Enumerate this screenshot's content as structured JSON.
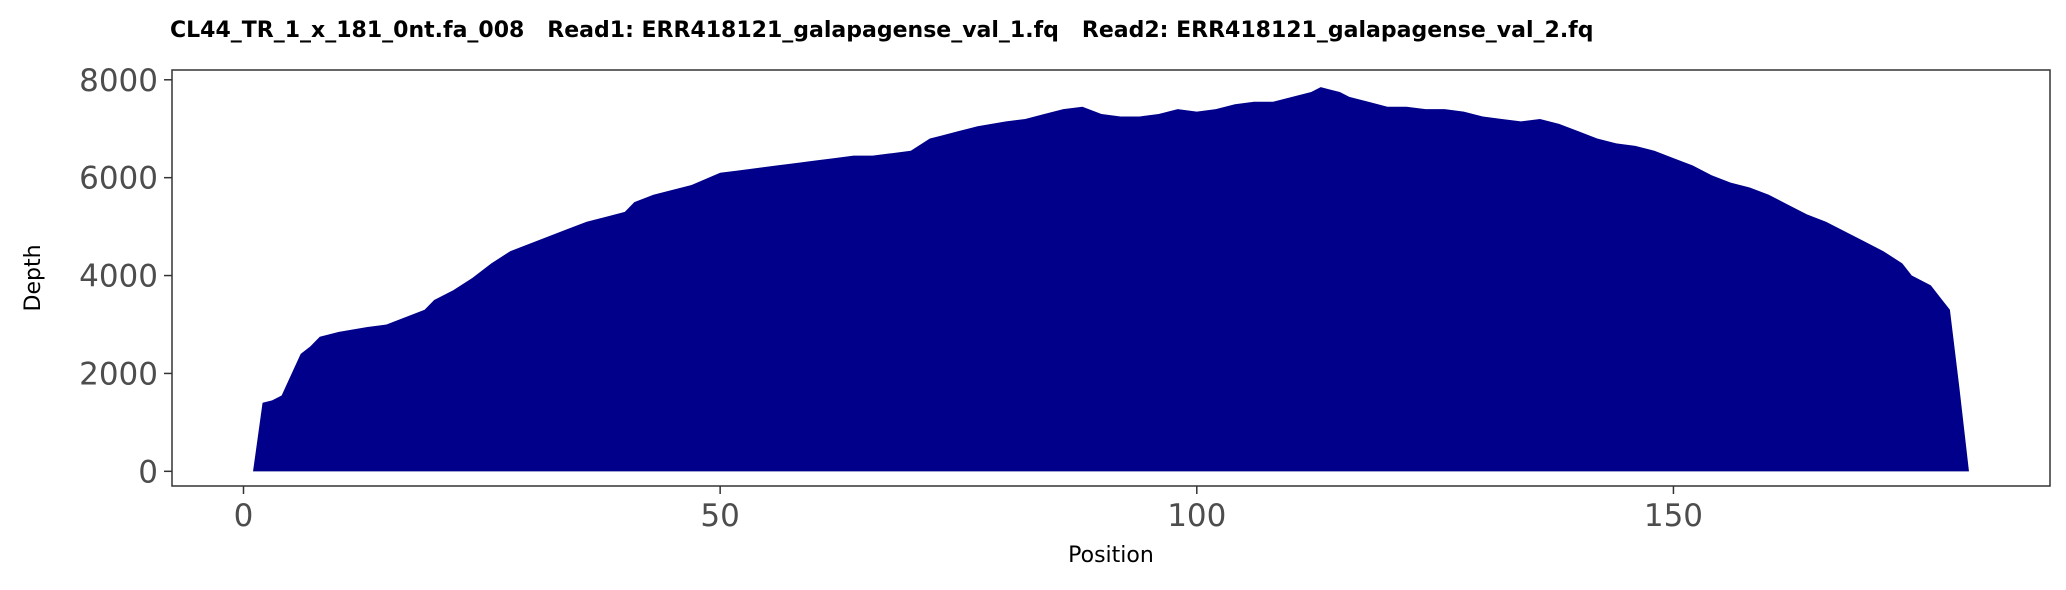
{
  "chart_data": {
    "type": "area",
    "title": "CL44_TR_1_x_181_0nt.fa_008   Read1: ERR418121_galapagense_val_1.fq   Read2: ERR418121_galapagense_val_2.fq",
    "xlabel": "Position",
    "ylabel": "Depth",
    "xlim": [
      -7.5,
      189.5
    ],
    "ylim": [
      -300,
      8200
    ],
    "x_ticks": [
      0,
      50,
      100,
      150
    ],
    "y_ticks": [
      0,
      2000,
      4000,
      6000,
      8000
    ],
    "grid": false,
    "legend": "none",
    "fill_color": "#00008b",
    "x": [
      1,
      2,
      3,
      4,
      6,
      7,
      8,
      10,
      13,
      15,
      17,
      19,
      20,
      22,
      24,
      26,
      28,
      30,
      32,
      34,
      36,
      38,
      40,
      41,
      43,
      45,
      47,
      50,
      52,
      54,
      56,
      58,
      60,
      62,
      64,
      66,
      68,
      70,
      72,
      73,
      75,
      77,
      80,
      82,
      84,
      86,
      88,
      90,
      92,
      94,
      96,
      98,
      100,
      102,
      104,
      106,
      108,
      110,
      112,
      113,
      114,
      115,
      116,
      118,
      120,
      122,
      124,
      126,
      128,
      130,
      132,
      134,
      136,
      138,
      140,
      142,
      144,
      146,
      148,
      150,
      152,
      154,
      156,
      158,
      160,
      162,
      164,
      166,
      168,
      170,
      172,
      174,
      175,
      177,
      178,
      179,
      180,
      181
    ],
    "values": [
      0,
      1400,
      1450,
      1550,
      2400,
      2550,
      2750,
      2850,
      2950,
      3000,
      3150,
      3300,
      3500,
      3700,
      3950,
      4250,
      4500,
      4650,
      4800,
      4950,
      5100,
      5200,
      5300,
      5500,
      5650,
      5750,
      5850,
      6100,
      6150,
      6200,
      6250,
      6300,
      6350,
      6400,
      6450,
      6450,
      6500,
      6550,
      6800,
      6850,
      6950,
      7050,
      7150,
      7200,
      7300,
      7400,
      7450,
      7300,
      7250,
      7250,
      7300,
      7400,
      7350,
      7400,
      7500,
      7550,
      7550,
      7650,
      7750,
      7850,
      7800,
      7750,
      7650,
      7550,
      7450,
      7450,
      7400,
      7400,
      7350,
      7250,
      7200,
      7150,
      7200,
      7100,
      6950,
      6800,
      6700,
      6650,
      6550,
      6400,
      6250,
      6050,
      5900,
      5800,
      5650,
      5450,
      5250,
      5100,
      4900,
      4700,
      4500,
      4250,
      4000,
      3800,
      3550,
      3300,
      1700,
      0
    ]
  }
}
